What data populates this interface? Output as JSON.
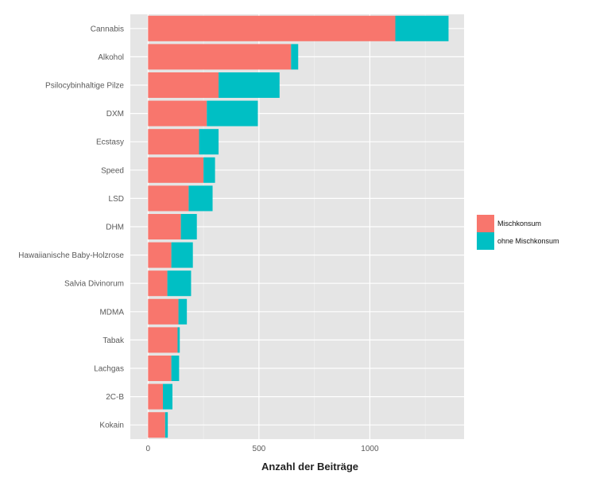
{
  "chart_data": {
    "type": "bar",
    "orientation": "horizontal",
    "stacked": true,
    "title": "",
    "xlabel": "Anzahl der Beiträge",
    "ylabel": "",
    "xlim": [
      -80,
      1425
    ],
    "xticks": [
      0,
      500,
      1000
    ],
    "grid": true,
    "legend_position": "right",
    "categories": [
      "Cannabis",
      "Alkohol",
      "Psilocybinhaltige Pilze",
      "DXM",
      "Ecstasy",
      "Speed",
      "LSD",
      "DHM",
      "Hawaiianische Baby-Holzrose",
      "Salvia Divinorum",
      "MDMA",
      "Tabak",
      "Lachgas",
      "2C-B",
      "Kokain"
    ],
    "series": [
      {
        "name": "Mischkonsum",
        "color": "#F8766D",
        "values": [
          1115,
          645,
          318,
          265,
          230,
          250,
          183,
          148,
          105,
          87,
          137,
          133,
          105,
          67,
          77
        ]
      },
      {
        "name": "ohne Mischkonsum",
        "color": "#00BFC4",
        "values": [
          240,
          32,
          275,
          230,
          88,
          52,
          108,
          72,
          97,
          107,
          38,
          10,
          35,
          43,
          12
        ]
      }
    ]
  }
}
